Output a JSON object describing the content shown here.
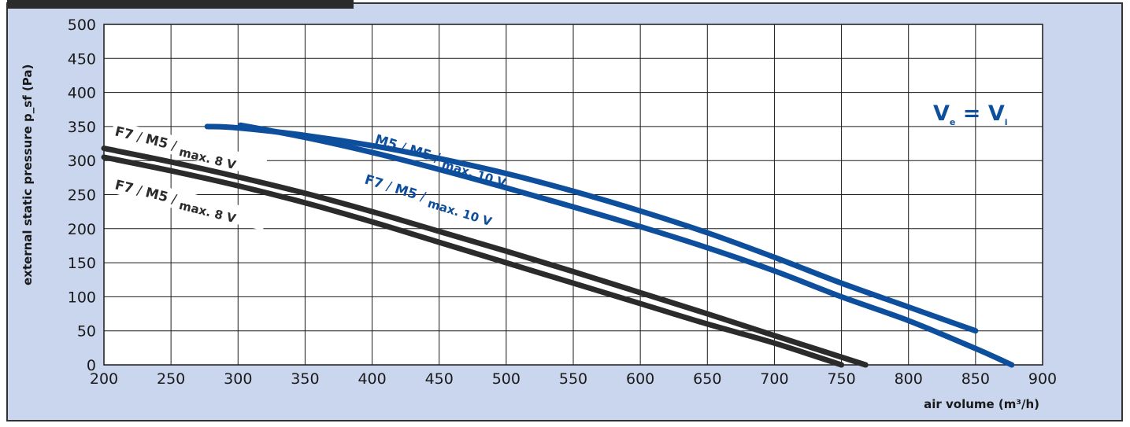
{
  "chart_data": {
    "type": "line",
    "title": "",
    "xlabel": "air volume (m³/h)",
    "ylabel": "external static pressure p_sf (Pa)",
    "xlim": [
      200,
      900
    ],
    "ylim": [
      0,
      500
    ],
    "xticks": [
      "200",
      "250",
      "300",
      "350",
      "400",
      "450",
      "500",
      "550",
      "600",
      "650",
      "700",
      "750",
      "800",
      "850",
      "900"
    ],
    "yticks": [
      "0",
      "50",
      "100",
      "150",
      "200",
      "250",
      "300",
      "350",
      "400",
      "450",
      "500"
    ],
    "grid": true,
    "annotation": {
      "main": "V",
      "sub_e": "e",
      "eq": " = ",
      "main2": "V",
      "sub_i": "i"
    },
    "colors": {
      "black": "#2b2b2b",
      "blue": "#0d4f9c",
      "panel": "#c9d6ee",
      "plot": "#ffffff"
    },
    "series": [
      {
        "name": "M5 / M5 / max. 10 V",
        "color": "blue",
        "x": [
          277,
          300,
          350,
          400,
          450,
          500,
          550,
          600,
          650,
          700,
          750,
          800,
          850
        ],
        "y": [
          350,
          348,
          337,
          322,
          303,
          281,
          255,
          226,
          194,
          158,
          120,
          85,
          50
        ]
      },
      {
        "name": "F7 / M5 / max. 10 V",
        "color": "blue",
        "x": [
          302,
          350,
          400,
          450,
          500,
          550,
          600,
          650,
          700,
          750,
          800,
          850,
          877
        ],
        "y": [
          352,
          334,
          312,
          287,
          260,
          232,
          203,
          172,
          138,
          100,
          65,
          24,
          0
        ]
      },
      {
        "name": "F7 / M5 / max. 8 V",
        "color": "black",
        "x": [
          200,
          250,
          300,
          350,
          400,
          450,
          500,
          550,
          600,
          650,
          700,
          768
        ],
        "y": [
          318,
          298,
          276,
          252,
          225,
          196,
          167,
          137,
          106,
          75,
          43,
          0
        ]
      },
      {
        "name": "F7 / M5 / max. 8 V",
        "color": "black",
        "x": [
          200,
          250,
          300,
          350,
          400,
          450,
          500,
          550,
          600,
          650,
          700,
          750
        ],
        "y": [
          305,
          285,
          263,
          238,
          210,
          180,
          150,
          120,
          90,
          60,
          32,
          0
        ]
      }
    ],
    "curve_labels": [
      {
        "parts": [
          "M5",
          " / ",
          "M5",
          " / ",
          "max. 10 V"
        ],
        "color": "blue"
      },
      {
        "parts": [
          "F7",
          " / ",
          "M5",
          " / ",
          "max. 10 V"
        ],
        "color": "blue"
      },
      {
        "parts": [
          "F7",
          " / ",
          "M5",
          " / ",
          "max. 8 V"
        ],
        "color": "black"
      },
      {
        "parts": [
          "F7",
          " / ",
          "M5",
          " / ",
          "max. 8 V"
        ],
        "color": "black"
      }
    ]
  }
}
